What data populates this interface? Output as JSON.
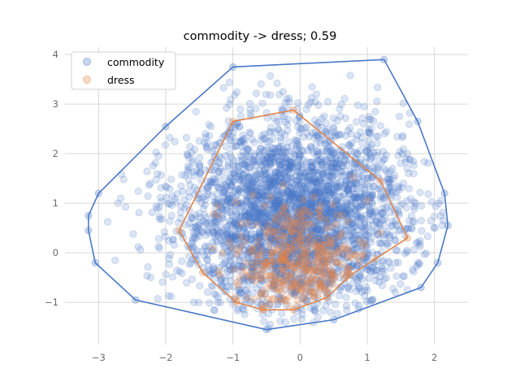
{
  "chart_data": {
    "type": "scatter",
    "title": "commodity -> dress; 0.59",
    "xlabel": "",
    "ylabel": "",
    "xlim": [
      -3.5,
      2.5
    ],
    "ylim": [
      -1.85,
      4.15
    ],
    "xticks": [
      -3,
      -2,
      -1,
      0,
      1,
      2
    ],
    "yticks": [
      -1,
      0,
      1,
      2,
      3,
      4
    ],
    "grid": true,
    "legend_position": "top-left",
    "series": [
      {
        "name": "commodity",
        "color": "#4a78c8",
        "marker": "circle",
        "alpha": 0.2,
        "hull": [
          [
            -3.15,
            0.45
          ],
          [
            -3.15,
            0.75
          ],
          [
            -3.0,
            1.2
          ],
          [
            -2.0,
            2.55
          ],
          [
            -1.0,
            3.75
          ],
          [
            1.25,
            3.9
          ],
          [
            1.75,
            2.65
          ],
          [
            2.15,
            1.2
          ],
          [
            2.2,
            0.55
          ],
          [
            2.05,
            -0.2
          ],
          [
            1.8,
            -0.7
          ],
          [
            0.5,
            -1.35
          ],
          [
            -0.5,
            -1.55
          ],
          [
            -2.45,
            -0.95
          ],
          [
            -3.05,
            -0.2
          ]
        ]
      },
      {
        "name": "dress",
        "color": "#e0844a",
        "marker": "circle",
        "alpha": 0.25,
        "hull": [
          [
            -1.8,
            0.45
          ],
          [
            -1.0,
            2.65
          ],
          [
            -0.1,
            2.88
          ],
          [
            1.2,
            1.45
          ],
          [
            1.6,
            0.3
          ],
          [
            0.75,
            -0.45
          ],
          [
            0.4,
            -0.9
          ],
          [
            -0.1,
            -1.15
          ],
          [
            -0.55,
            -1.15
          ],
          [
            -0.95,
            -1.0
          ],
          [
            -1.45,
            -0.4
          ]
        ]
      }
    ]
  }
}
